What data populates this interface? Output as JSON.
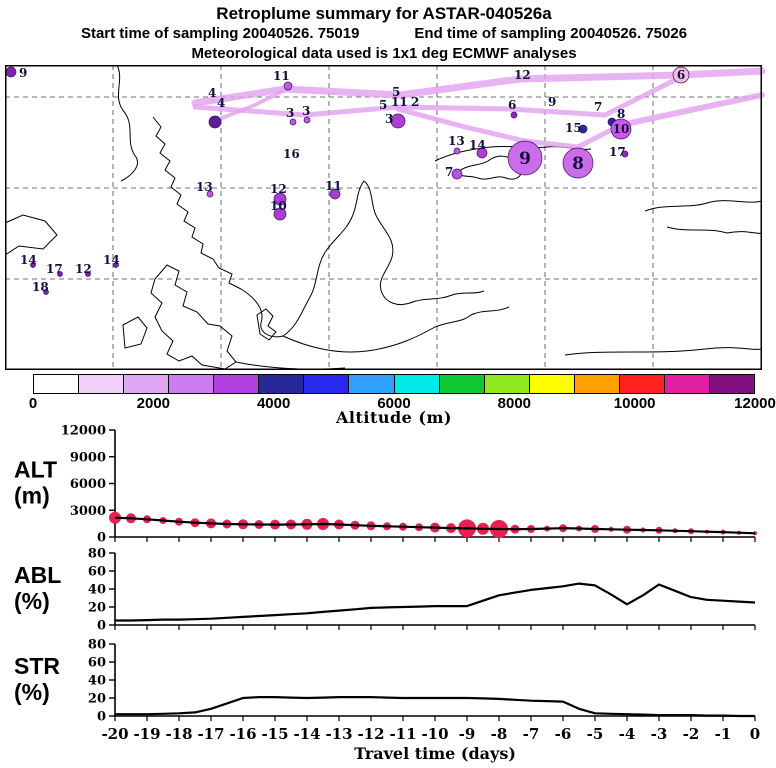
{
  "header": {
    "title": "Retroplume summary for ASTAR-040526a",
    "start_line": "Start time of sampling 20040526. 75019",
    "end_line": "End time of sampling 20040526. 75026",
    "met_line": "Meteorological data used is 1x1 deg ECMWF analyses"
  },
  "map": {
    "trajectory_color": "#e2a0ef",
    "number_color": "#101040",
    "trajectories": [
      {
        "w": 7,
        "points": [
          [
            190,
            38
          ],
          [
            280,
            24
          ],
          [
            395,
            30
          ],
          [
            515,
            14
          ],
          [
            676,
            10
          ],
          [
            757,
            6
          ]
        ]
      },
      {
        "w": 5,
        "points": [
          [
            190,
            42
          ],
          [
            300,
            50
          ],
          [
            393,
            42
          ],
          [
            505,
            44
          ],
          [
            600,
            50
          ],
          [
            672,
            14
          ]
        ]
      },
      {
        "w": 5,
        "points": [
          [
            393,
            44
          ],
          [
            460,
            62
          ],
          [
            520,
            76
          ],
          [
            573,
            82
          ],
          [
            612,
            62
          ]
        ]
      },
      {
        "w": 6,
        "points": [
          [
            616,
            60
          ],
          [
            700,
            42
          ],
          [
            757,
            30
          ]
        ]
      },
      {
        "w": 4,
        "points": [
          [
            212,
            55
          ],
          [
            250,
            40
          ],
          [
            282,
            24
          ]
        ]
      }
    ],
    "markers": [
      {
        "n": "9",
        "mx": 6,
        "my": 7,
        "r": 5,
        "c": "#7d22b0",
        "lx": 14,
        "ly": 12
      },
      {
        "n": "11",
        "mx": 283,
        "my": 21,
        "r": 4,
        "c": "#bb5ce0",
        "lx": 268,
        "ly": 15
      },
      {
        "n": "5",
        "mx": 0,
        "my": 0,
        "r": 0,
        "c": "",
        "lx": 387,
        "ly": 31
      },
      {
        "n": "12",
        "mx": 0,
        "my": 0,
        "r": 0,
        "c": "",
        "lx": 509,
        "ly": 14
      },
      {
        "n": "6",
        "mx": 676,
        "my": 10,
        "r": 8,
        "c": "#f2bcdf",
        "inside": true
      },
      {
        "n": "4",
        "mx": 210,
        "my": 57,
        "r": 6,
        "c": "#5e1f9a",
        "lx": 203,
        "ly": 32
      },
      {
        "n": "4",
        "mx": 0,
        "my": 0,
        "r": 0,
        "c": "",
        "lx": 212,
        "ly": 42
      },
      {
        "n": "3",
        "mx": 288,
        "my": 57,
        "r": 3,
        "c": "#bb5ce0",
        "lx": 281,
        "ly": 52
      },
      {
        "n": "3",
        "mx": 302,
        "my": 55,
        "r": 3,
        "c": "#bb5ce0",
        "lx": 297,
        "ly": 50
      },
      {
        "n": "5",
        "mx": 0,
        "my": 0,
        "r": 0,
        "c": "",
        "lx": 374,
        "ly": 44
      },
      {
        "n": "11",
        "mx": 0,
        "my": 0,
        "r": 0,
        "c": "",
        "lx": 386,
        "ly": 41
      },
      {
        "n": "2",
        "mx": 0,
        "my": 0,
        "r": 0,
        "c": "",
        "lx": 406,
        "ly": 41
      },
      {
        "n": "3",
        "mx": 393,
        "my": 56,
        "r": 7,
        "c": "#ad3fd6",
        "lx": 380,
        "ly": 58
      },
      {
        "n": "6",
        "mx": 509,
        "my": 50,
        "r": 3,
        "c": "#8a2bb8",
        "lx": 503,
        "ly": 44
      },
      {
        "n": "9",
        "mx": 0,
        "my": 0,
        "r": 0,
        "c": "",
        "lx": 543,
        "ly": 41
      },
      {
        "n": "7",
        "mx": 0,
        "my": 0,
        "r": 0,
        "c": "",
        "lx": 589,
        "ly": 46
      },
      {
        "n": "8",
        "mx": 607,
        "my": 57,
        "r": 4,
        "c": "#28289a",
        "lx": 612,
        "ly": 53
      },
      {
        "n": "15",
        "mx": 578,
        "my": 64,
        "r": 4,
        "c": "#28289a",
        "lx": 560,
        "ly": 67
      },
      {
        "n": "10",
        "mx": 616,
        "my": 64,
        "r": 10,
        "c": "#c957e8",
        "inside": true
      },
      {
        "n": "16",
        "mx": 0,
        "my": 0,
        "r": 0,
        "c": "",
        "lx": 278,
        "ly": 93
      },
      {
        "n": "13",
        "mx": 452,
        "my": 86,
        "r": 3,
        "c": "#bb5ce0",
        "lx": 443,
        "ly": 80
      },
      {
        "n": "14",
        "mx": 477,
        "my": 88,
        "r": 5,
        "c": "#a93ecf",
        "lx": 464,
        "ly": 84
      },
      {
        "n": "9",
        "mx": 520,
        "my": 93,
        "r": 17,
        "c": "#cb6ceb",
        "inside": true,
        "big": true
      },
      {
        "n": "8",
        "mx": 573,
        "my": 98,
        "r": 15,
        "c": "#cb6ceb",
        "inside": true,
        "big": true
      },
      {
        "n": "17",
        "mx": 620,
        "my": 89,
        "r": 3,
        "c": "#8a2bb8",
        "lx": 604,
        "ly": 91
      },
      {
        "n": "7",
        "mx": 452,
        "my": 109,
        "r": 5,
        "c": "#b653dd",
        "lx": 440,
        "ly": 111
      },
      {
        "n": "13",
        "mx": 205,
        "my": 129,
        "r": 3,
        "c": "#bb5ce0",
        "lx": 191,
        "ly": 126
      },
      {
        "n": "12",
        "mx": 275,
        "my": 134,
        "r": 6,
        "c": "#a93ecf",
        "lx": 265,
        "ly": 128
      },
      {
        "n": "11",
        "mx": 330,
        "my": 129,
        "r": 5,
        "c": "#a93ecf",
        "lx": 320,
        "ly": 125
      },
      {
        "n": "10",
        "mx": 275,
        "my": 149,
        "r": 6,
        "c": "#a93ecf",
        "lx": 265,
        "ly": 145
      },
      {
        "n": "14",
        "mx": 28,
        "my": 200,
        "r": 2.5,
        "c": "#7d22b0",
        "lx": 15,
        "ly": 199
      },
      {
        "n": "17",
        "mx": 55,
        "my": 209,
        "r": 2.5,
        "c": "#7d22b0",
        "lx": 41,
        "ly": 208
      },
      {
        "n": "12",
        "mx": 83,
        "my": 209,
        "r": 2.5,
        "c": "#7d22b0",
        "lx": 70,
        "ly": 208
      },
      {
        "n": "14",
        "mx": 111,
        "my": 200,
        "r": 2.5,
        "c": "#7d22b0",
        "lx": 98,
        "ly": 199
      },
      {
        "n": "18",
        "mx": 41,
        "my": 227,
        "r": 2.5,
        "c": "#7d22b0",
        "lx": 27,
        "ly": 226
      }
    ]
  },
  "colorbar": {
    "title": "Altitude (m)",
    "min": 0,
    "max": 12000,
    "tick_values": [
      0,
      2000,
      4000,
      6000,
      8000,
      10000,
      12000
    ],
    "tick_labels": [
      "0",
      "2000",
      "4000",
      "6000",
      "8000",
      "10000",
      "12000"
    ],
    "colors": [
      "#ffffff",
      "#f0d0f8",
      "#e0a8f4",
      "#cc7cf0",
      "#b040e0",
      "#282899",
      "#2828ee",
      "#30a0ff",
      "#00e8e8",
      "#10c830",
      "#90e820",
      "#ffff00",
      "#ffa000",
      "#ff2020",
      "#e020a0",
      "#801080"
    ]
  },
  "chart_data": [
    {
      "type": "line",
      "name": "ALT",
      "ylabel_lines": [
        "ALT",
        "(m)"
      ],
      "ylim": [
        0,
        12000
      ],
      "yticks": [
        0,
        3000,
        6000,
        9000,
        12000
      ],
      "ytick_labels": [
        "0",
        "3000",
        "6000",
        "9000",
        "12000"
      ],
      "x": [
        -20,
        -19.5,
        -19,
        -18.5,
        -18,
        -17.5,
        -17,
        -16.5,
        -16,
        -15.5,
        -15,
        -14.5,
        -14,
        -13.5,
        -13,
        -12.5,
        -12,
        -11.5,
        -11,
        -10.5,
        -10,
        -9.5,
        -9,
        -8.5,
        -8,
        -7.5,
        -7,
        -6.5,
        -6,
        -5.5,
        -5,
        -4.5,
        -4,
        -3.5,
        -3,
        -2.5,
        -2,
        -1.5,
        -1,
        -0.5,
        0
      ],
      "values": [
        2150,
        2100,
        1980,
        1850,
        1720,
        1600,
        1520,
        1460,
        1420,
        1400,
        1390,
        1400,
        1420,
        1460,
        1400,
        1320,
        1260,
        1200,
        1150,
        1100,
        1050,
        1000,
        960,
        920,
        900,
        880,
        900,
        940,
        990,
        950,
        900,
        860,
        820,
        780,
        750,
        700,
        650,
        600,
        550,
        480,
        420
      ],
      "dot_color": "#e62051",
      "dot_sizes": [
        6,
        5,
        4,
        3.5,
        4,
        4.5,
        5,
        4.5,
        5,
        4.5,
        5,
        5,
        5.5,
        6,
        5,
        4.5,
        4.5,
        4,
        4,
        4,
        5,
        5,
        9,
        6,
        9,
        4.5,
        4,
        3,
        4,
        3,
        4,
        2.5,
        4,
        2.5,
        3.5,
        2.5,
        3,
        2,
        2.5,
        2,
        2
      ]
    },
    {
      "type": "line",
      "name": "ABL",
      "ylabel_lines": [
        "ABL",
        "(%)"
      ],
      "ylim": [
        0,
        80
      ],
      "yticks": [
        0,
        20,
        40,
        60,
        80
      ],
      "ytick_labels": [
        "0",
        "20",
        "40",
        "60",
        "80"
      ],
      "x": [
        -20,
        -19.5,
        -19,
        -18.5,
        -18,
        -17.5,
        -17,
        -16.5,
        -16,
        -15.5,
        -15,
        -14.5,
        -14,
        -13.5,
        -13,
        -12.5,
        -12,
        -11.5,
        -11,
        -10.5,
        -10,
        -9.5,
        -9,
        -8.5,
        -8,
        -7.5,
        -7,
        -6.5,
        -6,
        -5.5,
        -5,
        -4.5,
        -4,
        -3.5,
        -3,
        -2.5,
        -2,
        -1.5,
        -1,
        -0.5,
        0
      ],
      "values": [
        5,
        5,
        5.5,
        6,
        6,
        6.5,
        7,
        8,
        9,
        10,
        11,
        12,
        13,
        14.5,
        16,
        17.5,
        19,
        19.5,
        20,
        20.5,
        21,
        21,
        21,
        27,
        33,
        36,
        39,
        41,
        43,
        46,
        44,
        34,
        23,
        33,
        45,
        38,
        31,
        28,
        27,
        26,
        25
      ]
    },
    {
      "type": "line",
      "name": "STR",
      "ylabel_lines": [
        "STR",
        "(%)"
      ],
      "ylim": [
        0,
        80
      ],
      "yticks": [
        0,
        20,
        40,
        60,
        80
      ],
      "ytick_labels": [
        "0",
        "20",
        "40",
        "60",
        "80"
      ],
      "x": [
        -20,
        -19.5,
        -19,
        -18.5,
        -18,
        -17.5,
        -17,
        -16.5,
        -16,
        -15.5,
        -15,
        -14.5,
        -14,
        -13.5,
        -13,
        -12.5,
        -12,
        -11.5,
        -11,
        -10.5,
        -10,
        -9.5,
        -9,
        -8.5,
        -8,
        -7.5,
        -7,
        -6.5,
        -6,
        -5.5,
        -5,
        -4.5,
        -4,
        -3.5,
        -3,
        -2.5,
        -2,
        -1.5,
        -1,
        -0.5,
        0
      ],
      "values": [
        2,
        2,
        2,
        2.5,
        3,
        4,
        8,
        14,
        20,
        21,
        21,
        20.5,
        20,
        20.5,
        21,
        21,
        21,
        20.5,
        20,
        20,
        20,
        20,
        20,
        19.5,
        19,
        18,
        17,
        16.5,
        16,
        8,
        3,
        2.5,
        2,
        1.5,
        1,
        1,
        1,
        0.5,
        0.5,
        0,
        0
      ]
    }
  ],
  "xaxis": {
    "title": "Travel time (days)",
    "tick_values": [
      -20,
      -19,
      -18,
      -17,
      -16,
      -15,
      -14,
      -13,
      -12,
      -11,
      -10,
      -9,
      -8,
      -7,
      -6,
      -5,
      -4,
      -3,
      -2,
      -1,
      0
    ],
    "tick_labels": [
      "-20",
      "-19",
      "-18",
      "-17",
      "-16",
      "-15",
      "-14",
      "-13",
      "-12",
      "-11",
      "-10",
      "-9",
      "-8",
      "-7",
      "-6",
      "-5",
      "-4",
      "-3",
      "-2",
      "-1",
      "0"
    ]
  }
}
